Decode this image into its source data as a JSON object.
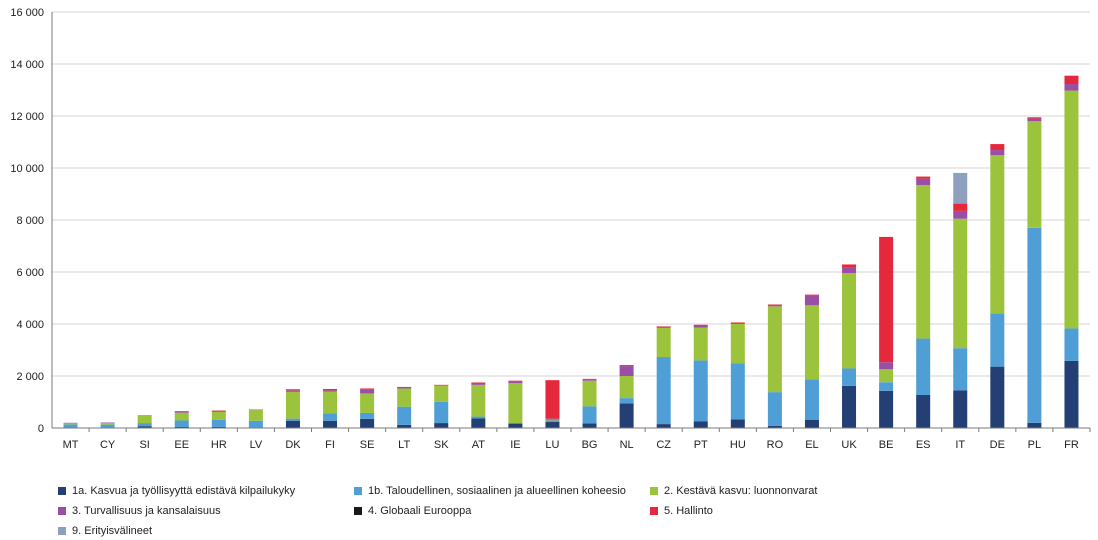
{
  "colors": {
    "s1a": "#243f73",
    "s1b": "#4f9fd6",
    "s2": "#9cc33c",
    "s3": "#9b4ea6",
    "s4": "#1a1a1a",
    "s5": "#e5283c",
    "s9": "#8fa0bf",
    "grid": "#d4d4d4",
    "axis": "#7a7a7a"
  },
  "chart_data": {
    "type": "bar",
    "stacked": true,
    "ylim": [
      0,
      16000
    ],
    "yticks": [
      0,
      2000,
      4000,
      6000,
      8000,
      10000,
      12000,
      14000,
      16000
    ],
    "ytick_labels": [
      "0",
      "2 000",
      "4 000",
      "6 000",
      "8 000",
      "10 000",
      "12 000",
      "14 000",
      "16 000"
    ],
    "grid": true,
    "legend_position": "bottom",
    "categories": [
      "MT",
      "CY",
      "SI",
      "EE",
      "HR",
      "LV",
      "DK",
      "FI",
      "SE",
      "LT",
      "SK",
      "AT",
      "IE",
      "LU",
      "BG",
      "NL",
      "CZ",
      "PT",
      "HU",
      "RO",
      "EL",
      "UK",
      "BE",
      "ES",
      "IT",
      "DE",
      "PL",
      "FR"
    ],
    "series": [
      {
        "key": "s1a",
        "name": "1a. Kasvua ja työllisyyttä edistävä kilpailukyky",
        "values": [
          30,
          20,
          70,
          40,
          40,
          30,
          280,
          280,
          350,
          120,
          190,
          370,
          170,
          230,
          180,
          950,
          150,
          250,
          330,
          80,
          320,
          1620,
          1430,
          1270,
          1450,
          2360,
          200,
          2580
        ]
      },
      {
        "key": "s1b",
        "name": "1b. Taloudellinen, sosiaalinen ja alueellinen koheesio",
        "values": [
          110,
          110,
          120,
          250,
          280,
          250,
          80,
          280,
          230,
          700,
          820,
          70,
          20,
          60,
          650,
          200,
          2580,
          2350,
          2150,
          1300,
          1550,
          670,
          330,
          2170,
          1620,
          2050,
          7500,
          1250
        ]
      },
      {
        "key": "s2",
        "name": "2. Kestävä kasvu: luonnonvarat",
        "values": [
          40,
          60,
          280,
          300,
          300,
          410,
          1030,
          840,
          750,
          700,
          620,
          1220,
          1540,
          30,
          990,
          850,
          1120,
          1260,
          1520,
          3300,
          2850,
          3670,
          500,
          5900,
          4980,
          6080,
          4100,
          9150
        ]
      },
      {
        "key": "s3",
        "name": "3. Turvallisuus ja kansalaisuus",
        "values": [
          20,
          20,
          20,
          40,
          40,
          20,
          60,
          50,
          140,
          40,
          20,
          50,
          50,
          40,
          50,
          380,
          40,
          80,
          40,
          50,
          380,
          200,
          270,
          250,
          300,
          200,
          100,
          250
        ]
      },
      {
        "key": "s4",
        "name": "4. Globaali Eurooppa",
        "values": [
          0,
          0,
          0,
          0,
          0,
          0,
          0,
          0,
          0,
          0,
          0,
          0,
          0,
          0,
          0,
          0,
          0,
          0,
          0,
          0,
          0,
          0,
          0,
          0,
          0,
          0,
          0,
          0
        ]
      },
      {
        "key": "s5",
        "name": "5. Hallinto",
        "values": [
          0,
          0,
          0,
          20,
          10,
          0,
          40,
          50,
          50,
          20,
          10,
          40,
          40,
          1480,
          20,
          40,
          20,
          30,
          20,
          20,
          30,
          130,
          4820,
          80,
          280,
          230,
          50,
          320
        ]
      },
      {
        "key": "s9",
        "name": "9. Erityisvälineet",
        "values": [
          0,
          0,
          0,
          0,
          0,
          0,
          0,
          0,
          0,
          0,
          0,
          0,
          0,
          0,
          0,
          0,
          0,
          0,
          0,
          0,
          0,
          0,
          0,
          0,
          1180,
          0,
          0,
          0
        ]
      }
    ]
  }
}
